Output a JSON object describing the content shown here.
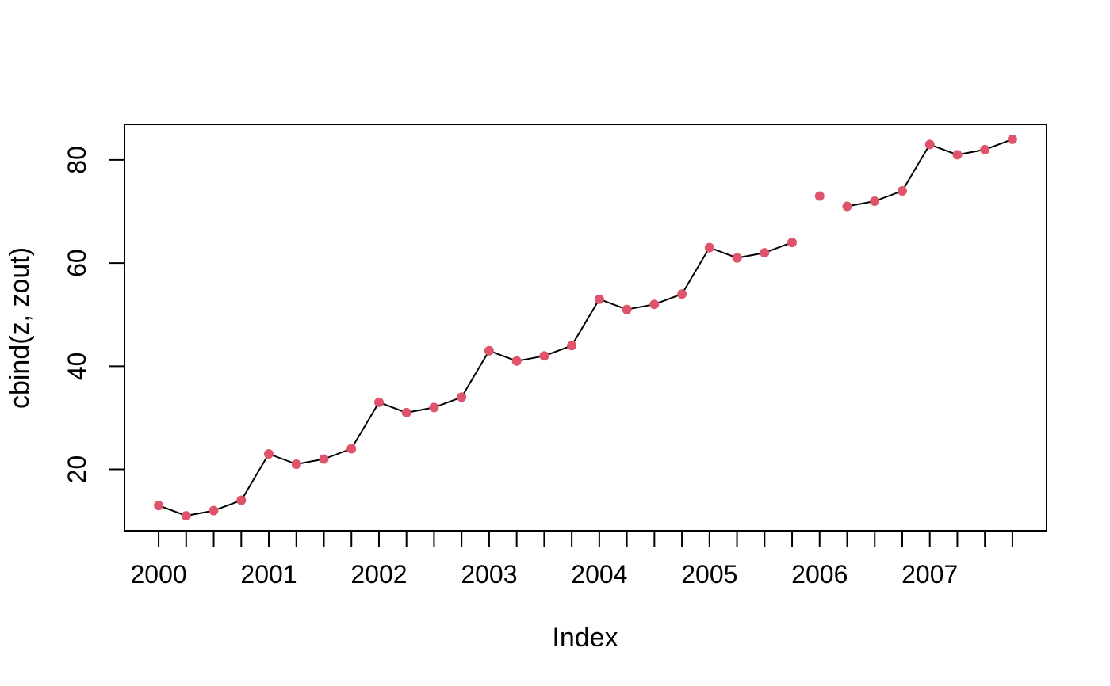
{
  "chart_data": {
    "type": "line",
    "title": "",
    "xlabel": "Index",
    "ylabel": "cbind(z, zout)",
    "x": [
      2000.0,
      2000.25,
      2000.5,
      2000.75,
      2001.0,
      2001.25,
      2001.5,
      2001.75,
      2002.0,
      2002.25,
      2002.5,
      2002.75,
      2003.0,
      2003.25,
      2003.5,
      2003.75,
      2004.0,
      2004.25,
      2004.5,
      2004.75,
      2005.0,
      2005.25,
      2005.5,
      2005.75,
      2006.0,
      2006.25,
      2006.5,
      2006.75,
      2007.0,
      2007.25,
      2007.5,
      2007.75
    ],
    "series": [
      {
        "name": "z",
        "style": "line-with-points",
        "values": [
          13,
          11,
          12,
          14,
          23,
          21,
          22,
          24,
          33,
          31,
          32,
          34,
          43,
          41,
          42,
          44,
          53,
          51,
          52,
          54,
          63,
          61,
          62,
          64,
          null,
          71,
          72,
          74,
          83,
          81,
          82,
          84
        ]
      },
      {
        "name": "zout",
        "style": "points-only",
        "values": [
          null,
          null,
          null,
          null,
          null,
          null,
          null,
          null,
          null,
          null,
          null,
          null,
          null,
          null,
          null,
          null,
          null,
          null,
          null,
          null,
          null,
          null,
          null,
          null,
          73,
          null,
          null,
          null,
          null,
          null,
          null,
          null
        ]
      }
    ],
    "x_tick_interval": 0.25,
    "x_tick_labels": [
      "2000",
      "2001",
      "2002",
      "2003",
      "2004",
      "2005",
      "2006",
      "2007"
    ],
    "x_labeled_tick_values": [
      2000,
      2001,
      2002,
      2003,
      2004,
      2005,
      2006,
      2007
    ],
    "y_ticks": [
      20,
      40,
      60,
      80
    ],
    "y_tick_labels": [
      "20",
      "40",
      "60",
      "80"
    ],
    "xlim": [
      1999.69,
      2008.06
    ],
    "ylim": [
      8.1,
      86.9
    ],
    "legend": "none",
    "grid": false,
    "colors": {
      "line": "#000000",
      "point": "#DF536B",
      "axis": "#000000",
      "text": "#000000",
      "background": "#FFFFFF"
    }
  }
}
